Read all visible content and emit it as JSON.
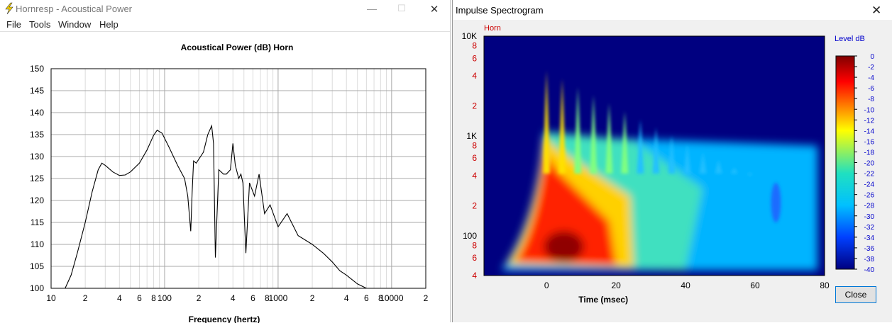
{
  "window1": {
    "title": "Hornresp - Acoustical Power",
    "controls": {
      "minimize": "—",
      "maximize": "☐",
      "close": "✕"
    },
    "menu": [
      "File",
      "Tools",
      "Window",
      "Help"
    ]
  },
  "window2": {
    "title": "Impulse Spectrogram",
    "close_glyph": "✕",
    "close_button": "Close"
  },
  "colors": {
    "plot_bg": "#000080",
    "series_label": "#cc0000",
    "legend_tick": "#0000cc",
    "freq_tick": "#cc0000",
    "accent": "#0078d7"
  },
  "chart_data": [
    {
      "type": "line",
      "title": "Acoustical Power (dB)    Horn",
      "xlabel": "Frequency (hertz)",
      "ylabel": "",
      "xscale": "log",
      "xlim": [
        10,
        20000
      ],
      "ylim": [
        100,
        150
      ],
      "grid": true,
      "x_tick_labels": [
        "10",
        "2",
        "4",
        "6",
        "8",
        "100",
        "2",
        "4",
        "6",
        "8",
        "1000",
        "2",
        "4",
        "6",
        "8",
        "10000",
        "2"
      ],
      "y_tick_labels": [
        "150",
        "145",
        "140",
        "135",
        "130",
        "125",
        "120",
        "115",
        "110",
        "105",
        "100"
      ],
      "series": [
        {
          "x": [
            13.3,
            15,
            17,
            20,
            23,
            26,
            28,
            30,
            35,
            40,
            45,
            50,
            60,
            70,
            80,
            86,
            95,
            110,
            130,
            150,
            160,
            170,
            175,
            180,
            190,
            220,
            240,
            260,
            270,
            280,
            300,
            330,
            350,
            380,
            400,
            420,
            450,
            470,
            490,
            520,
            560,
            620,
            680,
            760,
            850,
            1000,
            1200,
            1500,
            2000,
            2500,
            3000,
            3500,
            4000,
            5000,
            6000
          ],
          "values": [
            100,
            103,
            108,
            115,
            122,
            127,
            128.5,
            128,
            126.5,
            125.7,
            125.8,
            126.5,
            128.5,
            131.5,
            134.8,
            136,
            135.3,
            132,
            128,
            125,
            121,
            113,
            122,
            129,
            128.5,
            131,
            135,
            137,
            133,
            107,
            127,
            126,
            126,
            127,
            133,
            128,
            125,
            126,
            124,
            108,
            124,
            121,
            126,
            117,
            119,
            114,
            117,
            112,
            110,
            108,
            106,
            104,
            103,
            101,
            100
          ]
        }
      ]
    },
    {
      "type": "heatmap",
      "series_label": "Horn",
      "xlabel": "Time (msec)",
      "ylabel": "",
      "yscale": "log",
      "xlim": [
        -18,
        80
      ],
      "ylim": [
        40,
        10000
      ],
      "x_tick_labels": [
        "0",
        "20",
        "40",
        "60",
        "80"
      ],
      "y_tick_labels": [
        "10K",
        "8",
        "6",
        "4",
        "2",
        "1K",
        "8",
        "6",
        "4",
        "2",
        "100",
        "8",
        "6",
        "4"
      ],
      "legend_title": "Level  dB",
      "colorbar_range": [
        -40,
        0
      ],
      "colorbar_labels": [
        "0",
        "-2",
        "-4",
        "-6",
        "-8",
        "-10",
        "-12",
        "-14",
        "-16",
        "-18",
        "-20",
        "-22",
        "-24",
        "-26",
        "-28",
        "-30",
        "-32",
        "-34",
        "-36",
        "-38",
        "-40"
      ]
    }
  ]
}
